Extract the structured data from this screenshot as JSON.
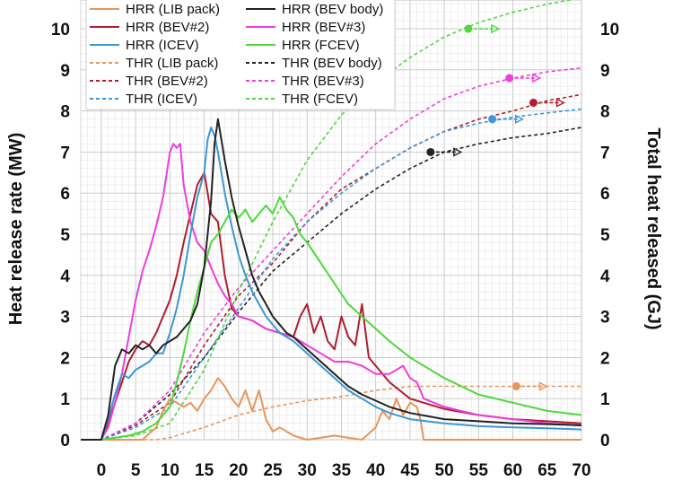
{
  "chart_data": {
    "type": "line",
    "xlabel": "",
    "ylabel_left": "Heat release rate (MW)",
    "ylabel_right": "Total heat released (GJ)",
    "xlim": [
      -3,
      70
    ],
    "ylim": [
      0,
      10.7
    ],
    "x_ticks": [
      0,
      5,
      10,
      15,
      20,
      25,
      30,
      35,
      40,
      45,
      50,
      55,
      60,
      65,
      70
    ],
    "y_ticks": [
      0,
      1,
      2,
      3,
      4,
      5,
      6,
      7,
      8,
      9,
      10
    ],
    "grid": true,
    "legend_position": "top-left",
    "legend": [
      "HRR (LIB pack)",
      "HRR (BEV body)",
      "HRR (BEV#2)",
      "HRR (BEV#3)",
      "HRR (ICEV)",
      "HRR (FCEV)",
      "THR (LIB pack)",
      "THR (BEV body)",
      "THR (BEV#2)",
      "THR (BEV#3)",
      "THR (ICEV)",
      "THR (FCEV)"
    ],
    "series": [
      {
        "name": "HRR (LIB pack)",
        "color": "#e8955a",
        "dash": false,
        "x": [
          -3,
          6,
          8,
          9,
          10,
          11,
          12,
          13,
          14,
          15,
          16,
          17,
          18,
          19,
          20,
          21,
          22,
          23,
          24,
          25,
          26,
          28,
          30,
          32,
          34,
          36,
          38,
          40,
          41,
          42,
          43,
          44,
          45,
          46,
          46.5,
          47,
          50,
          55,
          60,
          65,
          70
        ],
        "y": [
          0,
          0,
          0.3,
          0.7,
          1.0,
          0.9,
          0.8,
          0.9,
          0.7,
          1.0,
          1.2,
          1.5,
          1.3,
          1.0,
          0.8,
          1.2,
          0.7,
          1.2,
          0.5,
          0.2,
          0.3,
          0.1,
          0,
          0.05,
          0.1,
          0.05,
          0,
          0.3,
          0.7,
          0.5,
          1.0,
          0.6,
          0.9,
          0.8,
          0.5,
          0,
          0,
          0,
          0,
          0,
          0
        ]
      },
      {
        "name": "HRR (BEV body)",
        "color": "#222222",
        "dash": false,
        "x": [
          -3,
          0,
          1,
          2,
          3,
          4,
          5,
          6,
          7,
          8,
          9,
          10,
          11,
          12,
          13,
          14,
          15,
          16,
          16.5,
          17,
          17.5,
          18,
          19,
          20,
          21,
          22,
          23,
          24,
          25,
          26,
          27,
          28,
          30,
          32,
          34,
          36,
          38,
          40,
          42,
          45,
          50,
          55,
          60,
          65,
          70
        ],
        "y": [
          0,
          0,
          0.6,
          1.8,
          2.2,
          2.1,
          2.3,
          2.2,
          2.3,
          2.1,
          2.3,
          2.4,
          2.5,
          2.7,
          2.9,
          3.3,
          4.2,
          5.8,
          7.2,
          7.8,
          7.3,
          6.8,
          5.9,
          5.2,
          4.6,
          4.0,
          3.6,
          3.3,
          3.0,
          2.8,
          2.6,
          2.5,
          2.2,
          1.9,
          1.6,
          1.3,
          1.1,
          0.95,
          0.8,
          0.65,
          0.5,
          0.45,
          0.4,
          0.38,
          0.35
        ]
      },
      {
        "name": "HRR (BEV#2)",
        "color": "#b01c2e",
        "dash": false,
        "x": [
          -3,
          0,
          1,
          2,
          3,
          4,
          5,
          6,
          7,
          8,
          9,
          10,
          11,
          12,
          13,
          14,
          15,
          16,
          17,
          18,
          19,
          20,
          22,
          24,
          26,
          28,
          29,
          30,
          31,
          32,
          33,
          34,
          35,
          36,
          37,
          38,
          39,
          40,
          42,
          45,
          50,
          55,
          60,
          65,
          70
        ],
        "y": [
          0,
          0,
          0.4,
          0.9,
          1.4,
          1.9,
          2.2,
          2.4,
          2.3,
          2.6,
          3.0,
          3.4,
          4.0,
          4.8,
          5.5,
          6.2,
          6.5,
          5.5,
          5.3,
          4.0,
          3.2,
          3.0,
          2.9,
          2.7,
          2.6,
          2.5,
          3.0,
          3.3,
          2.6,
          3.0,
          2.4,
          2.2,
          3.0,
          2.5,
          2.3,
          3.3,
          2.0,
          1.8,
          1.4,
          1.0,
          0.75,
          0.6,
          0.5,
          0.45,
          0.4
        ]
      },
      {
        "name": "HRR (BEV#3)",
        "color": "#ee3ddc",
        "dash": false,
        "x": [
          -3,
          0,
          1,
          2,
          3,
          4,
          5,
          6,
          7,
          8,
          9,
          10,
          10.5,
          11,
          11.5,
          12,
          13,
          14,
          15,
          16,
          17,
          18,
          19,
          20,
          22,
          24,
          26,
          28,
          30,
          32,
          34,
          36,
          38,
          40,
          42,
          44,
          45,
          46,
          47,
          50,
          55,
          60,
          65,
          70
        ],
        "y": [
          0,
          0,
          0.3,
          0.9,
          1.6,
          2.5,
          3.4,
          4.1,
          4.6,
          5.2,
          5.9,
          7.0,
          7.2,
          7.1,
          7.2,
          6.2,
          5.3,
          4.8,
          4.6,
          4.2,
          3.8,
          3.5,
          3.3,
          3.0,
          2.9,
          2.7,
          2.6,
          2.5,
          2.3,
          2.1,
          1.9,
          1.9,
          1.8,
          1.6,
          1.6,
          1.8,
          1.5,
          1.4,
          1.0,
          0.8,
          0.6,
          0.5,
          0.4,
          0.35
        ]
      },
      {
        "name": "HRR (ICEV)",
        "color": "#3d97d3",
        "dash": false,
        "x": [
          -3,
          0,
          1,
          2,
          3,
          4,
          5,
          6,
          7,
          8,
          9,
          10,
          11,
          12,
          13,
          14,
          15,
          15.5,
          16,
          16.5,
          17,
          18,
          19,
          20,
          21,
          22,
          23,
          24,
          25,
          26,
          28,
          30,
          32,
          34,
          36,
          38,
          40,
          42,
          45,
          50,
          55,
          60,
          65,
          70
        ],
        "y": [
          0,
          0,
          0.5,
          1.1,
          1.6,
          1.5,
          1.7,
          1.8,
          1.9,
          2.1,
          2.1,
          2.6,
          3.2,
          4.0,
          5.0,
          5.9,
          6.5,
          7.3,
          7.6,
          7.4,
          7.0,
          6.0,
          5.2,
          4.5,
          4.0,
          3.6,
          3.3,
          3.0,
          2.8,
          2.6,
          2.4,
          2.1,
          1.8,
          1.5,
          1.2,
          1.0,
          0.8,
          0.65,
          0.5,
          0.4,
          0.33,
          0.3,
          0.28,
          0.25
        ]
      },
      {
        "name": "HRR (FCEV)",
        "color": "#4fd73d",
        "dash": false,
        "x": [
          -3,
          0,
          2,
          4,
          6,
          8,
          10,
          11,
          12,
          13,
          14,
          15,
          16,
          17,
          18,
          19,
          20,
          21,
          22,
          24,
          25,
          26,
          27,
          28,
          29,
          30,
          32,
          34,
          36,
          38,
          40,
          42,
          45,
          50,
          55,
          60,
          65,
          70
        ],
        "y": [
          0,
          0,
          0.05,
          0.1,
          0.2,
          0.4,
          0.8,
          1.4,
          2.1,
          2.9,
          3.6,
          4.2,
          4.8,
          5.0,
          5.3,
          5.6,
          5.4,
          5.6,
          5.3,
          5.7,
          5.5,
          5.9,
          5.6,
          5.4,
          5.0,
          4.8,
          4.3,
          3.8,
          3.3,
          3.0,
          2.7,
          2.4,
          2.0,
          1.5,
          1.1,
          0.9,
          0.7,
          0.6
        ]
      },
      {
        "name": "THR (LIB pack)",
        "color": "#e8955a",
        "dash": true,
        "x": [
          -3,
          8,
          10,
          15,
          20,
          25,
          30,
          35,
          40,
          45,
          50,
          55,
          60,
          65,
          70
        ],
        "y": [
          0,
          0,
          0.05,
          0.3,
          0.6,
          0.8,
          0.95,
          1.05,
          1.2,
          1.3,
          1.3,
          1.3,
          1.3,
          1.3,
          1.3
        ]
      },
      {
        "name": "THR (BEV body)",
        "color": "#222222",
        "dash": true,
        "x": [
          -3,
          0,
          5,
          10,
          15,
          20,
          25,
          30,
          35,
          40,
          45,
          50,
          55,
          60,
          65,
          70
        ],
        "y": [
          0,
          0,
          0.4,
          1.1,
          2.0,
          3.1,
          4.1,
          4.8,
          5.5,
          6.1,
          6.6,
          7.0,
          7.2,
          7.35,
          7.45,
          7.6
        ]
      },
      {
        "name": "THR (BEV#2)",
        "color": "#b01c2e",
        "dash": true,
        "x": [
          -3,
          0,
          5,
          10,
          15,
          20,
          25,
          30,
          35,
          40,
          45,
          50,
          55,
          60,
          65,
          70
        ],
        "y": [
          0,
          0,
          0.35,
          0.9,
          2.3,
          3.5,
          4.3,
          5.3,
          6.1,
          6.6,
          7.1,
          7.5,
          7.8,
          8.0,
          8.25,
          8.4
        ]
      },
      {
        "name": "THR (BEV#3)",
        "color": "#ee3ddc",
        "dash": true,
        "x": [
          -3,
          0,
          5,
          10,
          15,
          20,
          25,
          30,
          35,
          40,
          45,
          50,
          55,
          60,
          65,
          70
        ],
        "y": [
          0,
          0,
          0.4,
          1.2,
          2.6,
          3.7,
          4.6,
          5.5,
          6.4,
          7.2,
          7.8,
          8.3,
          8.6,
          8.8,
          8.95,
          9.05
        ]
      },
      {
        "name": "THR (ICEV)",
        "color": "#3d97d3",
        "dash": true,
        "x": [
          -3,
          0,
          5,
          10,
          15,
          20,
          25,
          30,
          35,
          40,
          45,
          50,
          55,
          60,
          65,
          70
        ],
        "y": [
          0,
          0,
          0.3,
          0.8,
          2.0,
          3.2,
          4.4,
          5.3,
          6.0,
          6.6,
          7.1,
          7.5,
          7.7,
          7.85,
          7.95,
          8.05
        ]
      },
      {
        "name": "THR (FCEV)",
        "color": "#4fd73d",
        "dash": true,
        "x": [
          -3,
          0,
          5,
          10,
          15,
          20,
          25,
          30,
          35,
          40,
          45,
          50,
          55,
          60,
          65,
          70
        ],
        "y": [
          0,
          0,
          0.1,
          0.4,
          1.7,
          3.6,
          5.3,
          6.8,
          7.9,
          8.7,
          9.3,
          9.8,
          10.15,
          10.4,
          10.6,
          10.75
        ]
      }
    ],
    "markers": [
      {
        "series": "THR (LIB pack)",
        "color": "#e8955a",
        "x": 60.5,
        "y": 1.3
      },
      {
        "series": "THR (BEV body)",
        "color": "#222222",
        "x": 48,
        "y": 7.0
      },
      {
        "series": "THR (BEV#2)",
        "color": "#b01c2e",
        "x": 63,
        "y": 8.2
      },
      {
        "series": "THR (BEV#3)",
        "color": "#ee3ddc",
        "x": 59.5,
        "y": 8.8
      },
      {
        "series": "THR (ICEV)",
        "color": "#3d97d3",
        "x": 57,
        "y": 7.8
      },
      {
        "series": "THR (FCEV)",
        "color": "#4fd73d",
        "x": 53.5,
        "y": 10.0
      }
    ]
  }
}
